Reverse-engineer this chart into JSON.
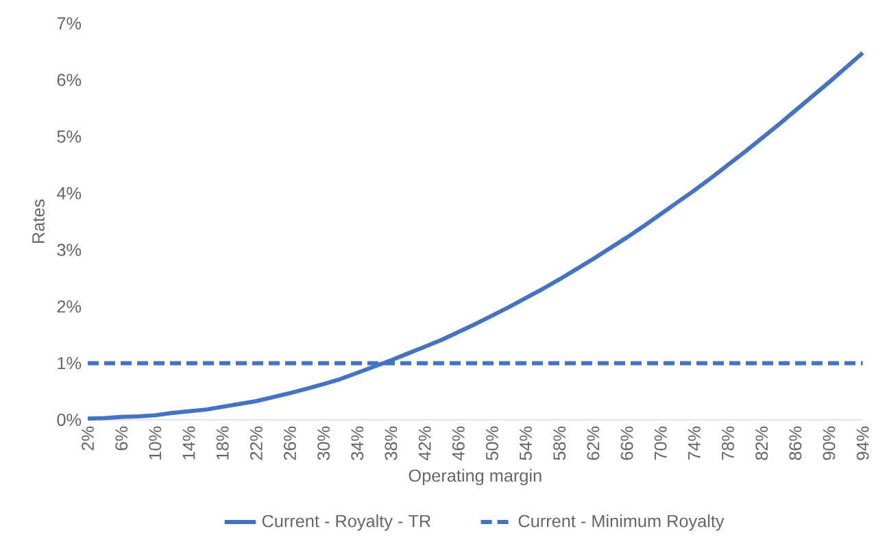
{
  "chart_data": {
    "type": "line",
    "xlabel": "Operating margin",
    "ylabel": "Rates",
    "categories": [
      "2%",
      null,
      "6%",
      null,
      "10%",
      null,
      "14%",
      null,
      "18%",
      null,
      "22%",
      null,
      "26%",
      null,
      "30%",
      null,
      "34%",
      null,
      "38%",
      null,
      "42%",
      null,
      "46%",
      null,
      "50%",
      null,
      "54%",
      null,
      "58%",
      null,
      "62%",
      null,
      "66%",
      null,
      "70%",
      null,
      "74%",
      null,
      "78%",
      null,
      "82%",
      null,
      "86%",
      null,
      "90%",
      null,
      "94%"
    ],
    "series": [
      {
        "name": "Current - Royalty - TR",
        "color": "#4472c4",
        "line_style": "solid",
        "values": [
          0.02,
          0.03,
          0.05,
          0.06,
          0.08,
          0.12,
          0.15,
          0.18,
          0.23,
          0.28,
          0.33,
          0.4,
          0.47,
          0.55,
          0.63,
          0.72,
          0.83,
          0.94,
          1.05,
          1.17,
          1.29,
          1.41,
          1.55,
          1.69,
          1.84,
          1.99,
          2.15,
          2.31,
          2.48,
          2.66,
          2.84,
          3.03,
          3.22,
          3.42,
          3.63,
          3.84,
          4.05,
          4.27,
          4.5,
          4.73,
          4.97,
          5.21,
          5.46,
          5.71,
          5.96,
          6.22,
          6.48
        ]
      },
      {
        "name": "Current - Minimum Royalty",
        "color": "#4472c4",
        "line_style": "dashed",
        "values": [
          1,
          1,
          1,
          1,
          1,
          1,
          1,
          1,
          1,
          1,
          1,
          1,
          1,
          1,
          1,
          1,
          1,
          1,
          1,
          1,
          1,
          1,
          1,
          1,
          1,
          1,
          1,
          1,
          1,
          1,
          1,
          1,
          1,
          1,
          1,
          1,
          1,
          1,
          1,
          1,
          1,
          1,
          1,
          1,
          1,
          1,
          1
        ]
      }
    ],
    "ylim": [
      0,
      7
    ],
    "yticks": [
      {
        "value": 0,
        "label": "0%"
      },
      {
        "value": 1,
        "label": "1%"
      },
      {
        "value": 2,
        "label": "2%"
      },
      {
        "value": 3,
        "label": "3%"
      },
      {
        "value": 4,
        "label": "4%"
      },
      {
        "value": 5,
        "label": "5%"
      },
      {
        "value": 6,
        "label": "6%"
      },
      {
        "value": 7,
        "label": "7%"
      }
    ],
    "grid": false,
    "legend": "bottom",
    "marker": "none"
  }
}
